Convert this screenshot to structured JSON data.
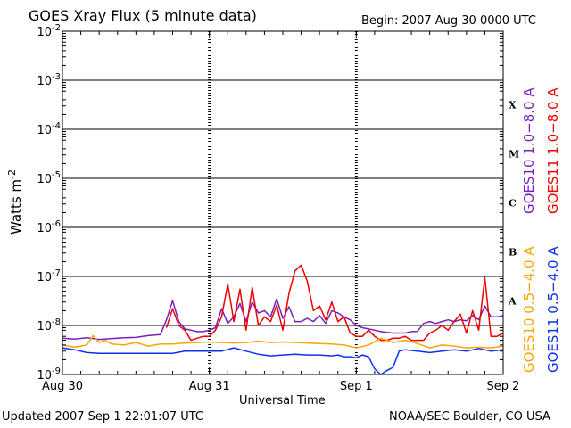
{
  "header": {
    "title": "GOES Xray Flux (5 minute data)",
    "begin": "Begin:  2007 Aug 30 0000 UTC"
  },
  "footer": {
    "updated": "Updated 2007 Sep  1 22:01:07 UTC",
    "credit": "NOAA/SEC Boulder, CO USA"
  },
  "chart_data": {
    "type": "line",
    "title": "GOES Xray Flux (5 minute data)",
    "xlabel": "Universal Time",
    "ylabel": "Watts m",
    "ylabel_sup": "-2",
    "y_scale": "log",
    "ylim": [
      1e-09,
      0.01
    ],
    "y_ticks": [
      {
        "value": 1e-09,
        "label": "10",
        "exp": "-9"
      },
      {
        "value": 1e-08,
        "label": "10",
        "exp": "-8"
      },
      {
        "value": 1e-07,
        "label": "10",
        "exp": "-7"
      },
      {
        "value": 1e-06,
        "label": "10",
        "exp": "-6"
      },
      {
        "value": 1e-05,
        "label": "10",
        "exp": "-5"
      },
      {
        "value": 0.0001,
        "label": "10",
        "exp": "-4"
      },
      {
        "value": 0.001,
        "label": "10",
        "exp": "-3"
      },
      {
        "value": 0.01,
        "label": "10",
        "exp": "-2"
      }
    ],
    "x_unit": "hours since 2007 Aug 30 0000 UTC",
    "xlim": [
      0,
      72
    ],
    "x_ticks": [
      {
        "value": 0,
        "label": "Aug 30"
      },
      {
        "value": 24,
        "label": "Aug 31"
      },
      {
        "value": 48,
        "label": "Sep 1"
      },
      {
        "value": 72,
        "label": "Sep 2"
      }
    ],
    "flare_classes": [
      {
        "label": "A",
        "low": 1e-08,
        "high": 1e-07
      },
      {
        "label": "B",
        "low": 1e-07,
        "high": 1e-06
      },
      {
        "label": "C",
        "low": 1e-06,
        "high": 1e-05
      },
      {
        "label": "M",
        "low": 1e-05,
        "high": 0.0001
      },
      {
        "label": "X",
        "low": 0.0001,
        "high": 0.001
      }
    ],
    "legend_right": [
      {
        "text": "GOES10 1.0−8.0 A",
        "color": "#7a1fbf"
      },
      {
        "text": "GOES11 1.0−8.0 A",
        "color": "#ee0000"
      }
    ],
    "legend_bottom": [
      {
        "text": "GOES10 0.5−4.0 A",
        "color": "#ffa500"
      },
      {
        "text": "GOES11 0.5−4.0 A",
        "color": "#1030f0"
      }
    ],
    "series": [
      {
        "name": "GOES10 1.0-8.0 A",
        "color": "#7a1fbf",
        "x": [
          0,
          2,
          4,
          6,
          8,
          10,
          12,
          14,
          16,
          17,
          18,
          19,
          20,
          21,
          22,
          23,
          24,
          25,
          26,
          27,
          28,
          29,
          30,
          31,
          32,
          33,
          34,
          35,
          36,
          37,
          38,
          39,
          40,
          41,
          42,
          43,
          44,
          45,
          46,
          47,
          48,
          49,
          50,
          51,
          52,
          53,
          54,
          55,
          56,
          57,
          58,
          59,
          60,
          61,
          62,
          63,
          64,
          65,
          66,
          67,
          68,
          69,
          70,
          71,
          72
        ],
        "y": [
          5.5e-09,
          5.3e-09,
          5.6e-09,
          5.2e-09,
          5.4e-09,
          5.6e-09,
          5.7e-09,
          6.2e-09,
          6.5e-09,
          1.3e-08,
          3.2e-08,
          1.2e-08,
          8.5e-09,
          8e-09,
          7.5e-09,
          7.5e-09,
          8e-09,
          9e-09,
          2.2e-08,
          1.1e-08,
          1.5e-08,
          2.8e-08,
          1.2e-08,
          3e-08,
          1.8e-08,
          2e-08,
          1.5e-08,
          3.5e-08,
          1.4e-08,
          2.4e-08,
          1.2e-08,
          1.2e-08,
          1.4e-08,
          1.2e-08,
          1.6e-08,
          1.1e-08,
          2e-08,
          1.8e-08,
          1.5e-08,
          1.3e-08,
          1e-08,
          9e-09,
          8.5e-09,
          8e-09,
          7.5e-09,
          7.2e-09,
          7e-09,
          7e-09,
          7e-09,
          7.5e-09,
          7.6e-09,
          1.1e-08,
          1.2e-08,
          1.1e-08,
          1.2e-08,
          1.3e-08,
          1.2e-08,
          1.3e-08,
          1.25e-08,
          1.6e-08,
          1.3e-08,
          2.5e-08,
          1.5e-08,
          1.5e-08,
          1.6e-08
        ]
      },
      {
        "name": "GOES11 1.0-8.0 A",
        "color": "#ee0000",
        "x": [
          17,
          18,
          19,
          20,
          21,
          22,
          23,
          24,
          25,
          26,
          27,
          28,
          29,
          30,
          31,
          32,
          33,
          34,
          35,
          36,
          37,
          38,
          39,
          40,
          41,
          42,
          43,
          44,
          45,
          46,
          47,
          48,
          49,
          50,
          51,
          52,
          53,
          54,
          55,
          56,
          57,
          58,
          59,
          60,
          61,
          62,
          63,
          64,
          65,
          66,
          67,
          68,
          69,
          70,
          71,
          72
        ],
        "y": [
          9e-09,
          2.2e-08,
          1e-08,
          8e-09,
          5e-09,
          5.5e-09,
          6e-09,
          6e-09,
          8e-09,
          1.5e-08,
          7e-08,
          1.2e-08,
          5.5e-08,
          8e-09,
          6e-08,
          1e-08,
          1.5e-08,
          1.2e-08,
          2.6e-08,
          8e-09,
          4.5e-08,
          1.3e-07,
          1.7e-07,
          8e-08,
          2e-08,
          2.5e-08,
          1.3e-08,
          3e-08,
          1.2e-08,
          1.5e-08,
          7e-09,
          6e-09,
          6e-09,
          8e-09,
          6e-09,
          5e-09,
          5e-09,
          5.5e-09,
          5.5e-09,
          6e-09,
          5e-09,
          5e-09,
          5e-09,
          7e-09,
          8e-09,
          1e-08,
          8e-09,
          1.2e-08,
          1.7e-08,
          7e-09,
          2e-08,
          8e-09,
          9.5e-08,
          6e-09,
          6e-09,
          7e-09
        ]
      },
      {
        "name": "GOES10 0.5-4.0 A",
        "color": "#ffa500",
        "x": [
          0,
          2,
          4,
          5,
          6,
          7,
          8,
          10,
          12,
          14,
          16,
          18,
          20,
          22,
          24,
          26,
          28,
          30,
          32,
          34,
          36,
          38,
          40,
          42,
          44,
          46,
          48,
          50,
          52,
          54,
          56,
          58,
          60,
          62,
          64,
          66,
          68,
          70,
          72
        ],
        "y": [
          4e-09,
          3.6e-09,
          4e-09,
          6.2e-09,
          4.5e-09,
          5e-09,
          4.2e-09,
          4e-09,
          4.5e-09,
          3.8e-09,
          4.2e-09,
          4.2e-09,
          4.4e-09,
          4.5e-09,
          4.6e-09,
          4.5e-09,
          4.4e-09,
          4.5e-09,
          4.8e-09,
          4.5e-09,
          4.6e-09,
          4.5e-09,
          4.4e-09,
          4.3e-09,
          4.2e-09,
          4e-09,
          3.5e-09,
          4e-09,
          5.5e-09,
          4.5e-09,
          5e-09,
          4.3e-09,
          3.5e-09,
          4e-09,
          3.8e-09,
          3.5e-09,
          3.6e-09,
          3.5e-09,
          3.8e-09
        ]
      },
      {
        "name": "GOES11 0.5-4.0 A",
        "color": "#1030f0",
        "x": [
          0,
          2,
          4,
          6,
          8,
          10,
          12,
          14,
          16,
          18,
          20,
          22,
          24,
          26,
          28,
          30,
          32,
          34,
          36,
          38,
          40,
          42,
          44,
          45,
          46,
          47,
          48,
          49,
          50,
          51,
          52,
          53,
          54,
          55,
          56,
          58,
          60,
          62,
          64,
          66,
          68,
          70,
          72
        ],
        "y": [
          3.5e-09,
          3.2e-09,
          2.8e-09,
          2.7e-09,
          2.7e-09,
          2.7e-09,
          2.7e-09,
          2.7e-09,
          2.7e-09,
          2.7e-09,
          3e-09,
          3e-09,
          3e-09,
          3e-09,
          3.5e-09,
          3e-09,
          2.6e-09,
          2.4e-09,
          2.5e-09,
          2.6e-09,
          2.5e-09,
          2.5e-09,
          2.4e-09,
          2.5e-09,
          2.3e-09,
          2.3e-09,
          2.2e-09,
          2.5e-09,
          2.3e-09,
          1.3e-09,
          1e-09,
          1.2e-09,
          1.4e-09,
          3e-09,
          3.2e-09,
          3e-09,
          2.8e-09,
          3e-09,
          3.2e-09,
          3e-09,
          3.4e-09,
          3e-09,
          3.2e-09
        ]
      }
    ]
  }
}
